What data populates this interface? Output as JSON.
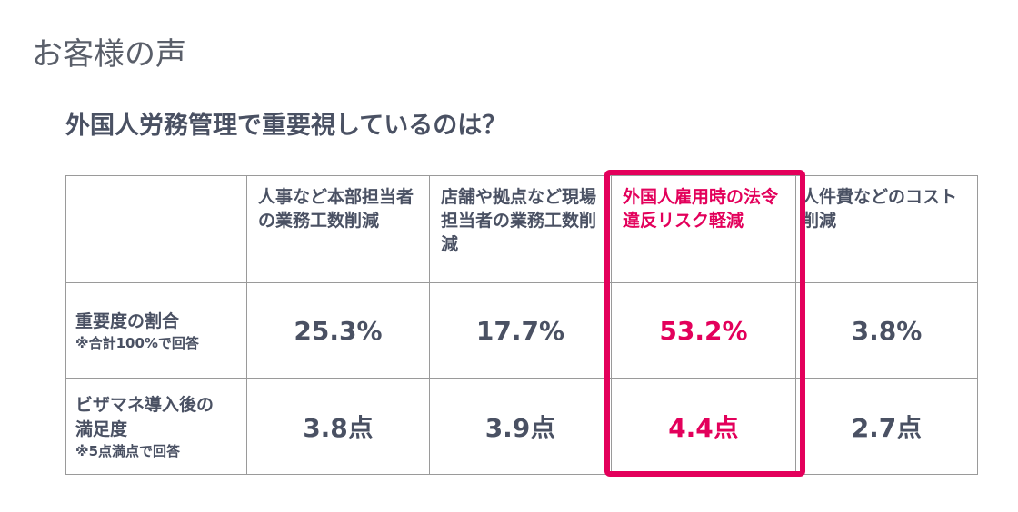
{
  "header": {
    "title": "お客様の声",
    "subtitle": "外国人労務管理で重要視しているのは？"
  },
  "table": {
    "columns": [
      "人事など本部担当者の業務工数削減",
      "店舗や拠点など現場担当者の業務工数削減",
      "外国人雇用時の法令違反リスク軽減",
      "人件費などのコスト削減"
    ],
    "rows": [
      {
        "label": "重要度の割合",
        "note": "※合計100%で回答",
        "cells": [
          "25.3%",
          "17.7%",
          "53.2%",
          "3.8%"
        ]
      },
      {
        "label": "ビザマネ導入後の満足度",
        "note": "※5点満点で回答",
        "cells": [
          "3.8点",
          "3.9点",
          "4.4点",
          "2.7点"
        ]
      }
    ]
  }
}
